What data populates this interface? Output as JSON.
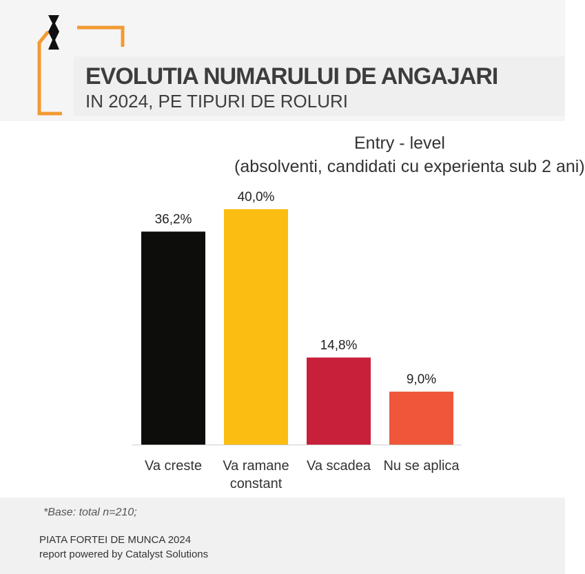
{
  "header": {
    "title": "EVOLUTIA NUMARULUI DE ANGAJARI",
    "subtitle": "IN 2024, PE TIPURI DE ROLURI",
    "accent": "#f39a33"
  },
  "chart_data": {
    "type": "bar",
    "title": "Entry - level",
    "subtitle": "(absolventi, candidati cu experienta sub 2 ani)",
    "categories": [
      [
        "Va creste"
      ],
      [
        "Va ramane",
        "constant"
      ],
      [
        "Va scadea"
      ],
      [
        "Nu se aplica"
      ]
    ],
    "values": [
      36.2,
      40.0,
      14.8,
      9.0
    ],
    "data_labels": [
      "36,2%",
      "40,0%",
      "14,8%",
      "9,0%"
    ],
    "colors": [
      "#0d0d0b",
      "#fbbd12",
      "#c8203a",
      "#f0563a"
    ],
    "ylim": [
      0,
      40
    ],
    "grid": false
  },
  "footer": {
    "base_note": "*Base: total n=210;",
    "report": "PIATA FORTEI DE MUNCA 2024",
    "powered": "report powered by Catalyst Solutions"
  }
}
